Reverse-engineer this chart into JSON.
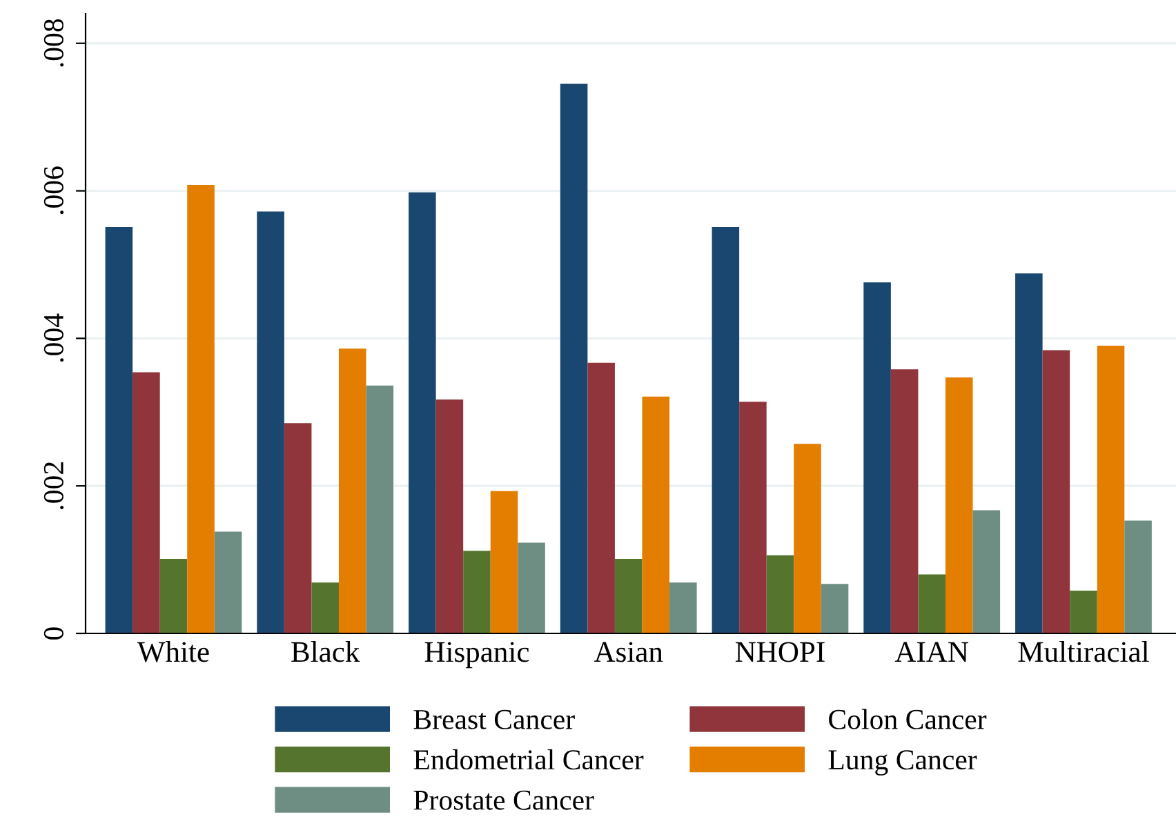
{
  "chart_data": {
    "type": "bar",
    "categories": [
      "White",
      "Black",
      "Hispanic",
      "Asian",
      "NHOPI",
      "AIAN",
      "Multiracial"
    ],
    "series": [
      {
        "name": "Breast Cancer",
        "color": "#1a476f",
        "values": [
          0.00551,
          0.00572,
          0.00598,
          0.00745,
          0.00551,
          0.00476,
          0.00488
        ]
      },
      {
        "name": "Colon Cancer",
        "color": "#90353b",
        "values": [
          0.00354,
          0.00285,
          0.00317,
          0.00367,
          0.00314,
          0.00358,
          0.00384
        ]
      },
      {
        "name": "Endometrial Cancer",
        "color": "#55752f",
        "values": [
          0.00101,
          0.00069,
          0.00112,
          0.00101,
          0.00106,
          0.0008,
          0.00058
        ]
      },
      {
        "name": "Lung Cancer",
        "color": "#e37e00",
        "values": [
          0.00608,
          0.00386,
          0.00193,
          0.00321,
          0.00257,
          0.00347,
          0.0039
        ]
      },
      {
        "name": "Prostate Cancer",
        "color": "#6e8e84",
        "values": [
          0.00138,
          0.00336,
          0.00123,
          0.00069,
          0.00067,
          0.00167,
          0.00153
        ]
      }
    ],
    "ylim": [
      0,
      0.0084
    ],
    "yticks": [
      {
        "value": 0,
        "label": "0"
      },
      {
        "value": 0.002,
        "label": ".002"
      },
      {
        "value": 0.004,
        "label": ".004"
      },
      {
        "value": 0.006,
        "label": ".006"
      },
      {
        "value": 0.008,
        "label": ".008"
      }
    ],
    "grid": "y",
    "legend": "bottom"
  }
}
